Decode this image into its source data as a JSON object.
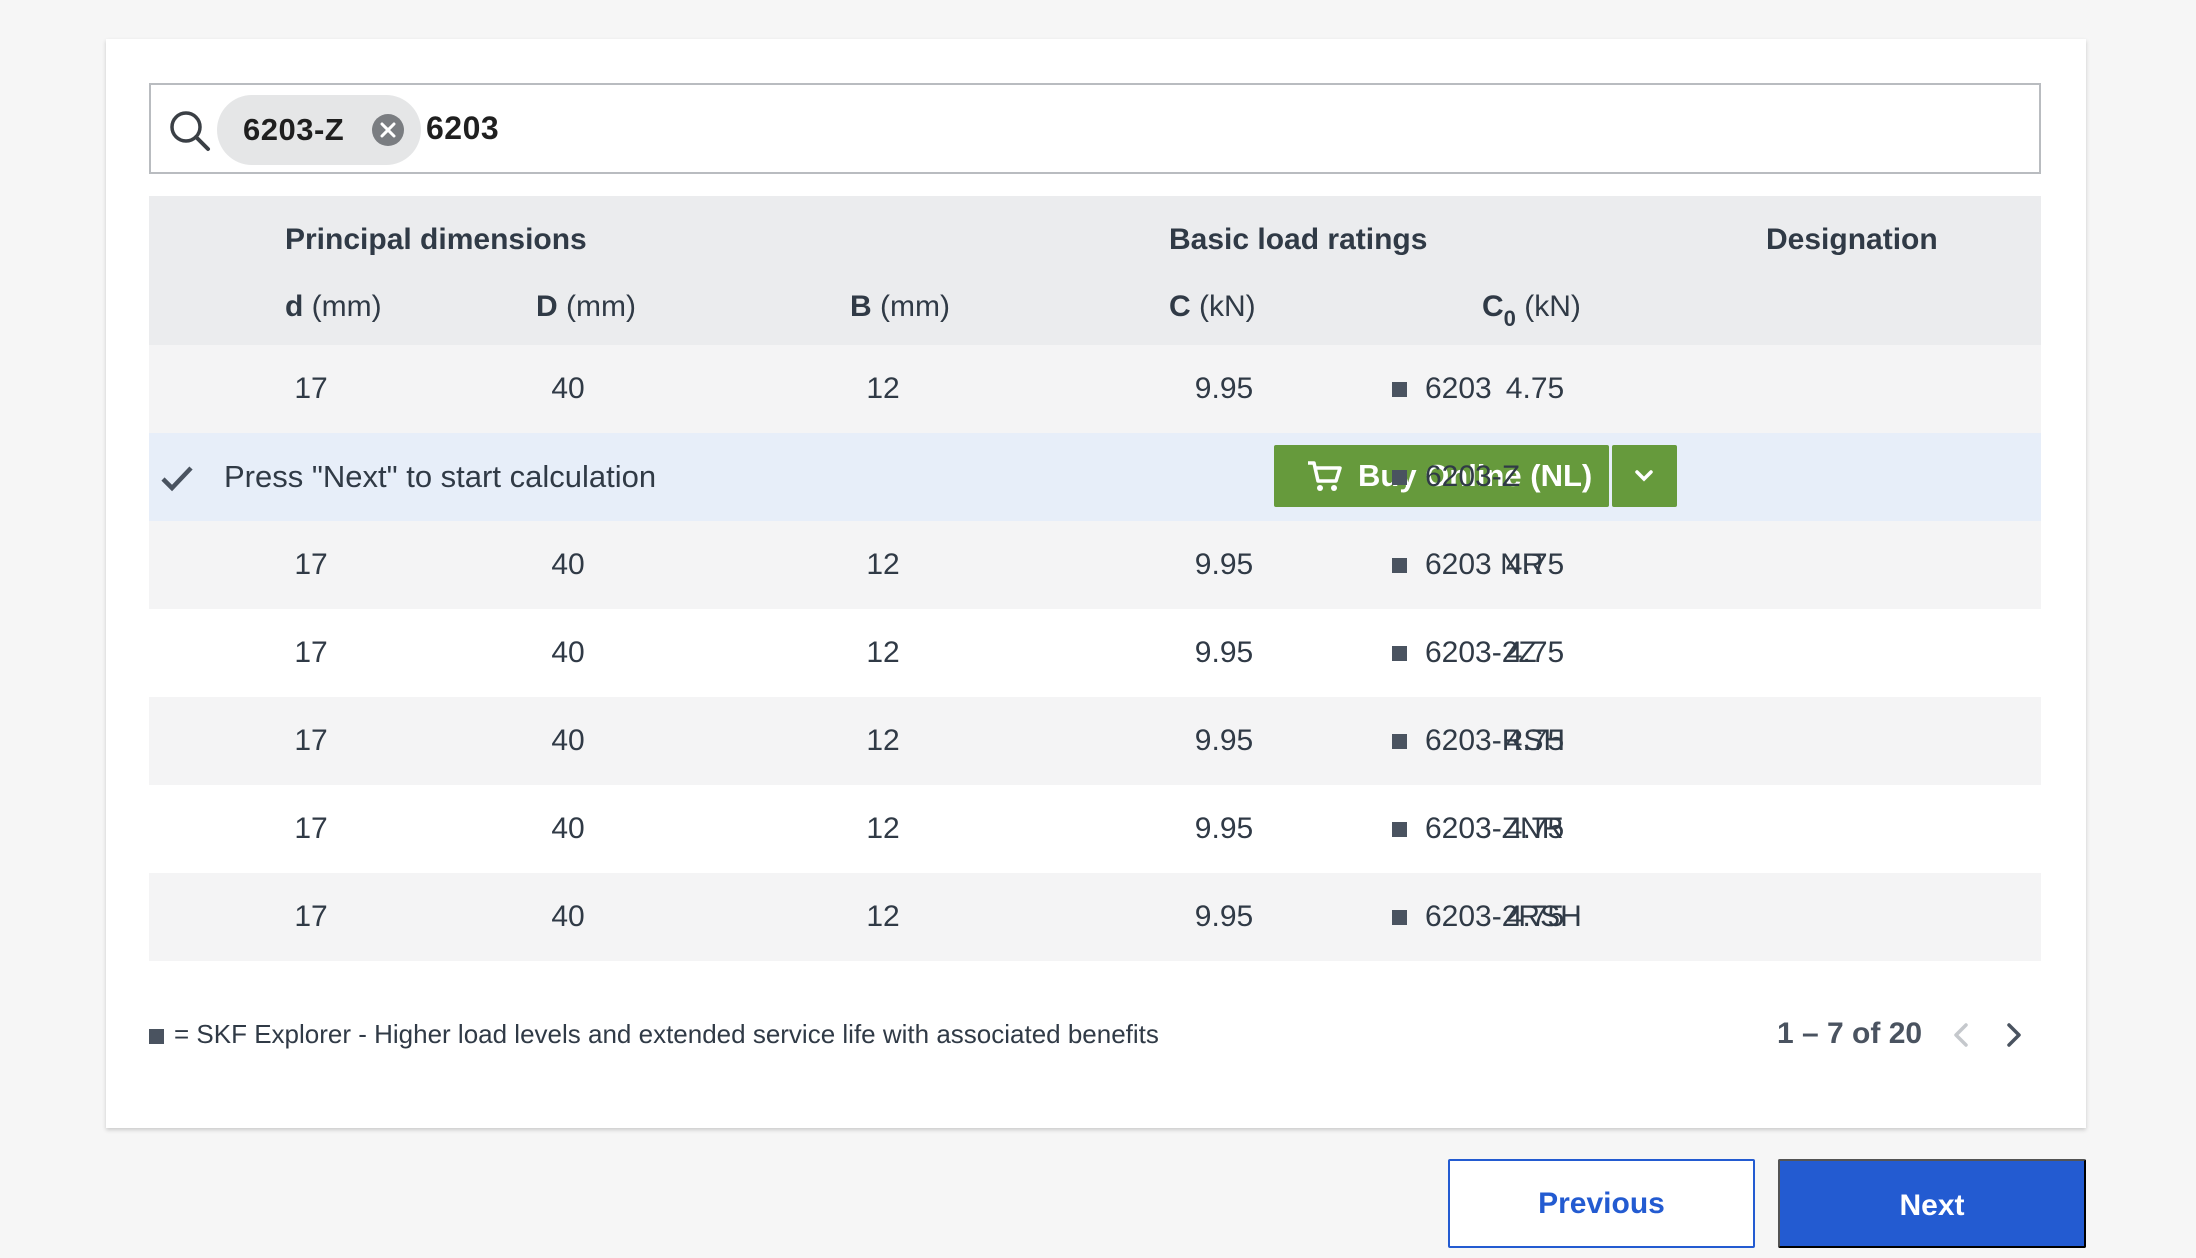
{
  "search": {
    "chip_label": "6203-Z",
    "query": "6203"
  },
  "table": {
    "groups": {
      "principal": "Principal dimensions",
      "load": "Basic load ratings",
      "designation": "Designation"
    },
    "columns": {
      "d_sym": "d",
      "d_unit": " (mm)",
      "D_sym": "D",
      "D_unit": " (mm)",
      "B_sym": "B",
      "B_unit": " (mm)",
      "C_sym": "C",
      "C_unit": " (kN)",
      "C0_sym": "C",
      "C0_sub": "0",
      "C0_unit": " (kN)"
    },
    "rows": [
      {
        "d": "17",
        "D": "40",
        "B": "12",
        "C": "9.95",
        "C0": "4.75",
        "designation": "6203"
      },
      {
        "selected": true,
        "message": "Press \"Next\" to start calculation",
        "buy_label": "Buy Online (NL)",
        "designation": "6203-Z"
      },
      {
        "d": "17",
        "D": "40",
        "B": "12",
        "C": "9.95",
        "C0": "4.75",
        "designation": "6203 NR"
      },
      {
        "d": "17",
        "D": "40",
        "B": "12",
        "C": "9.95",
        "C0": "4.75",
        "designation": "6203-2Z"
      },
      {
        "d": "17",
        "D": "40",
        "B": "12",
        "C": "9.95",
        "C0": "4.75",
        "designation": "6203-RSH"
      },
      {
        "d": "17",
        "D": "40",
        "B": "12",
        "C": "9.95",
        "C0": "4.75",
        "designation": "6203-ZNR"
      },
      {
        "d": "17",
        "D": "40",
        "B": "12",
        "C": "9.95",
        "C0": "4.75",
        "designation": "6203-2RSH"
      }
    ]
  },
  "legend": "= SKF Explorer - Higher load levels and extended service life with associated benefits",
  "pagination": {
    "label": "1 – 7 of 20"
  },
  "footer": {
    "previous_label": "Previous",
    "next_label": "Next"
  },
  "colors": {
    "accent_blue": "#235bd1",
    "buy_green": "#669a3c",
    "selected_row": "#e7eef9",
    "header_bg": "#ebecee"
  },
  "icons": {
    "search": "search-icon",
    "chip_remove": "close-circle-icon",
    "check": "check-icon",
    "cart": "cart-icon",
    "dropdown": "chevron-down-icon",
    "explorer_marker": "square-icon",
    "prev_page": "chevron-left-icon",
    "next_page": "chevron-right-icon"
  }
}
